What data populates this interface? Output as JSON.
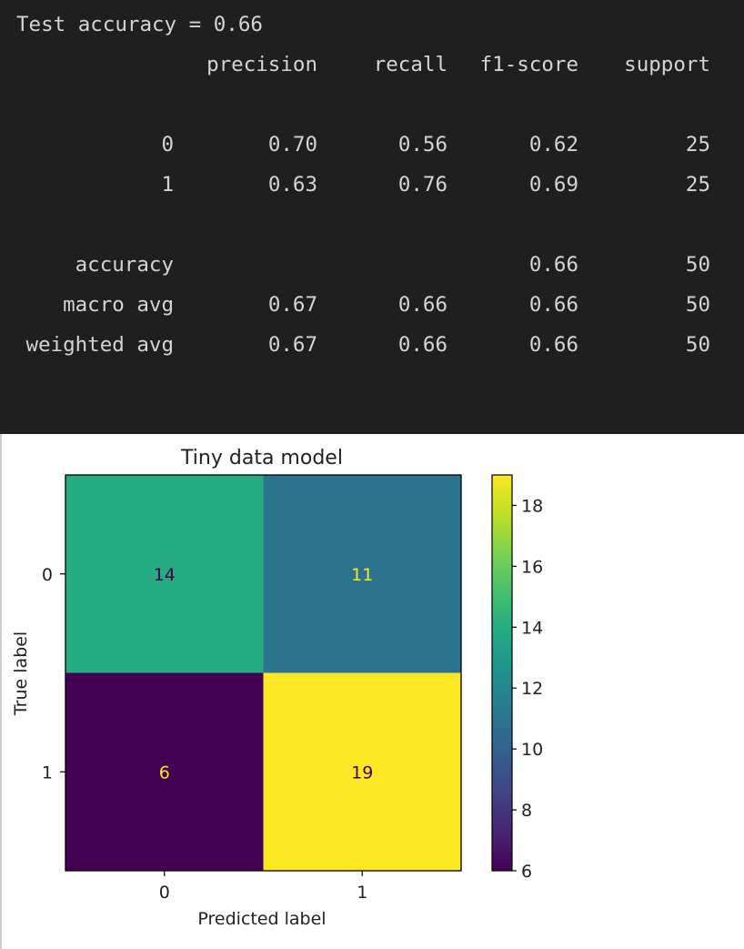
{
  "console": {
    "accuracy_line": "Test accuracy = 0.66",
    "columns": [
      "precision",
      "recall",
      "f1-score",
      "support"
    ],
    "rows": [
      {
        "label": "0",
        "values": [
          "0.70",
          "0.56",
          "0.62",
          "25"
        ]
      },
      {
        "label": "1",
        "values": [
          "0.63",
          "0.76",
          "0.69",
          "25"
        ]
      }
    ],
    "summary_rows": [
      {
        "label": "accuracy",
        "values": [
          "",
          "",
          "0.66",
          "50"
        ]
      },
      {
        "label": "macro avg",
        "values": [
          "0.67",
          "0.66",
          "0.66",
          "50"
        ]
      },
      {
        "label": "weighted avg",
        "values": [
          "0.67",
          "0.66",
          "0.66",
          "50"
        ]
      }
    ]
  },
  "chart_data": {
    "type": "heatmap",
    "title": "Tiny data model",
    "xlabel": "Predicted label",
    "ylabel": "True label",
    "x_categories": [
      "0",
      "1"
    ],
    "y_categories": [
      "0",
      "1"
    ],
    "matrix": [
      [
        14,
        11
      ],
      [
        6,
        19
      ]
    ],
    "colorbar": {
      "min": 6,
      "max": 19,
      "ticks": [
        6,
        8,
        10,
        12,
        14,
        16,
        18
      ],
      "colormap": "viridis"
    }
  }
}
